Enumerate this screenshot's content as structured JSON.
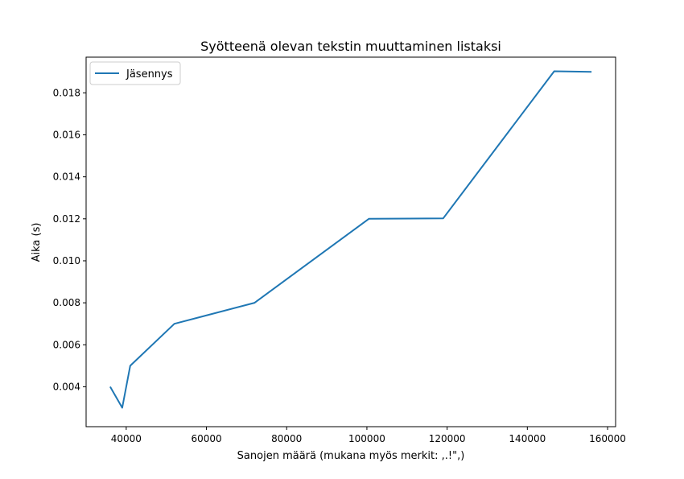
{
  "chart_data": {
    "type": "line",
    "title": "Syötteenä olevan tekstin muuttaminen listaksi",
    "xlabel": "Sanojen määrä (mukana myös merkit: ,.!\",)",
    "ylabel": "Aika (s)",
    "xlim": [
      30000,
      162000
    ],
    "ylim": [
      0.0021,
      0.0197
    ],
    "xticks": [
      40000,
      60000,
      80000,
      100000,
      120000,
      140000,
      160000
    ],
    "xtick_labels": [
      "40000",
      "60000",
      "80000",
      "100000",
      "120000",
      "140000",
      "160000"
    ],
    "yticks": [
      0.004,
      0.006,
      0.008,
      0.01,
      0.012,
      0.014,
      0.016,
      0.018
    ],
    "ytick_labels": [
      "0.004",
      "0.006",
      "0.008",
      "0.010",
      "0.012",
      "0.014",
      "0.016",
      "0.018"
    ],
    "grid": false,
    "legend_position": "top-left",
    "series": [
      {
        "name": "Jäsennys",
        "color": "#1f77b4",
        "x": [
          36000,
          39000,
          41000,
          52000,
          72000,
          100500,
          119000,
          146700,
          156000
        ],
        "y": [
          0.004,
          0.003,
          0.005,
          0.007,
          0.008,
          0.012,
          0.01202,
          0.01903,
          0.019
        ]
      }
    ]
  }
}
